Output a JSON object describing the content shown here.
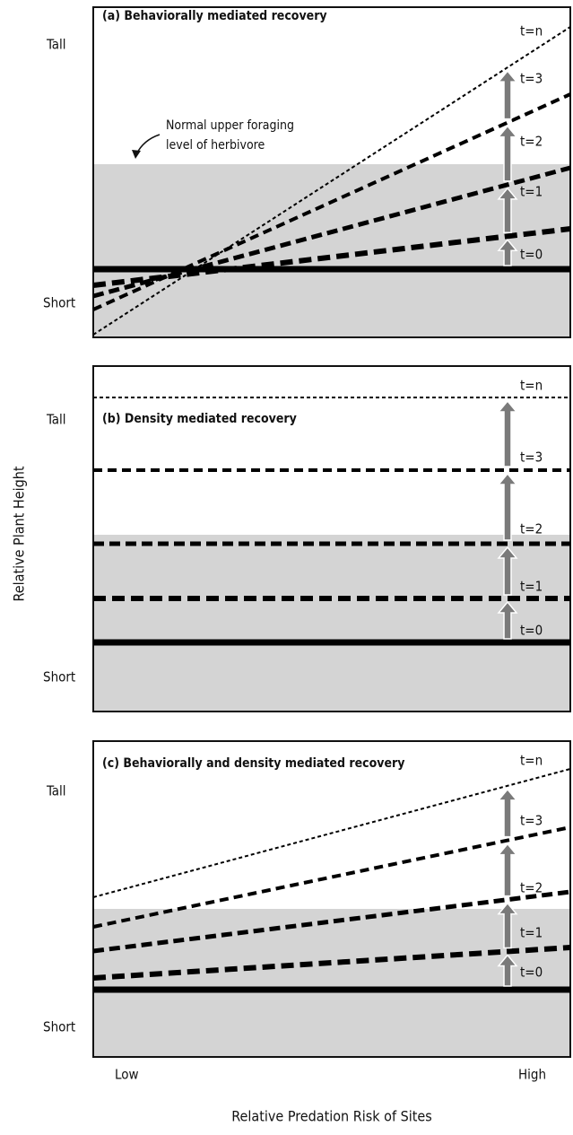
{
  "panels": [
    {
      "title": "(a) Behaviorally mediated recovery",
      "tall": "Tall",
      "short": "Short",
      "times": [
        "t=0",
        "t=1",
        "t=2",
        "t=3",
        "t=n"
      ]
    },
    {
      "title": "(b) Density mediated recovery",
      "tall": "Tall",
      "short": "Short",
      "times": [
        "t=0",
        "t=1",
        "t=2",
        "t=3",
        "t=n"
      ]
    },
    {
      "title": "(c) Behaviorally and density mediated recovery",
      "tall": "Tall",
      "short": "Short",
      "times": [
        "t=0",
        "t=1",
        "t=2",
        "t=3",
        "t=n"
      ]
    }
  ],
  "annotation": [
    "Normal upper foraging",
    "level of herbivore"
  ],
  "y_axis_label": "Relative Plant Height",
  "x_axis_label": "Relative Predation Risk of Sites",
  "x_low": "Low",
  "x_high": "High"
}
